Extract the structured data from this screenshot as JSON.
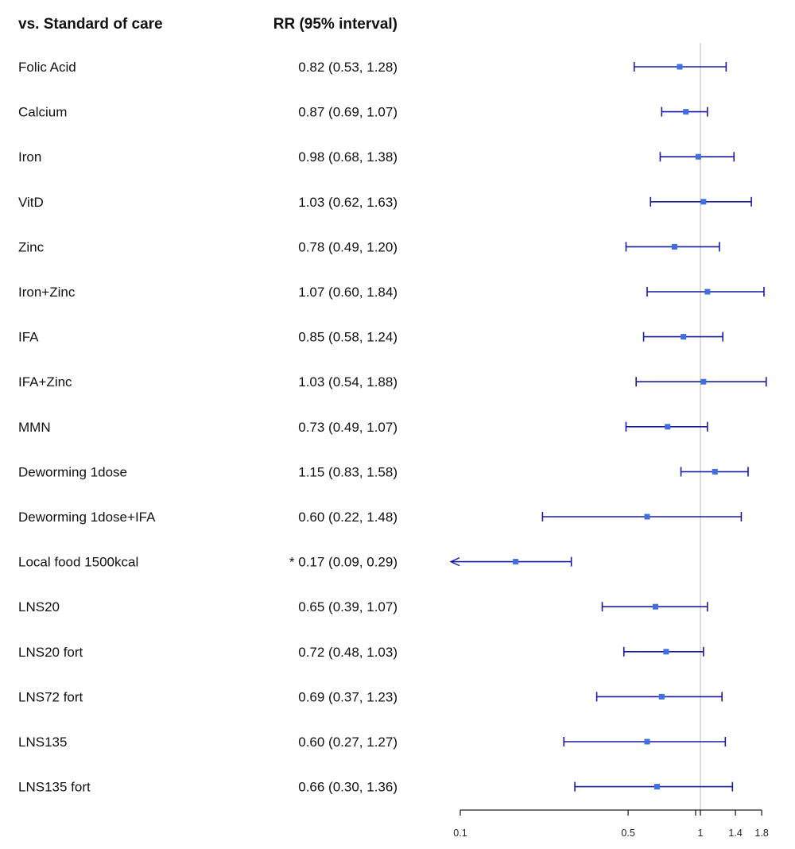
{
  "chart_data": {
    "type": "forest",
    "scale": "log",
    "headers": {
      "comparison": "vs. Standard of care",
      "estimate": "RR (95% interval)"
    },
    "reference_value": 1,
    "xlim": [
      0.1,
      1.8
    ],
    "x_ticks": [
      {
        "value": 0.1,
        "label": "0.1"
      },
      {
        "value": 0.5,
        "label": "0.5"
      },
      {
        "value": 0.98,
        "label": ""
      },
      {
        "value": 1,
        "label": "1"
      },
      {
        "value": 1.4,
        "label": "1.4"
      },
      {
        "value": 1.8,
        "label": "1.8"
      }
    ],
    "colors": {
      "interval": "#1a1aa0",
      "point": "#3f6fe0",
      "reference_line": "#d0d0d0",
      "axis": "#222222"
    },
    "rows": [
      {
        "label": "Folic Acid",
        "text": "0.82 (0.53, 1.28)",
        "rr": 0.82,
        "lo": 0.53,
        "hi": 1.28,
        "significant": false
      },
      {
        "label": "Calcium",
        "text": "0.87 (0.69, 1.07)",
        "rr": 0.87,
        "lo": 0.69,
        "hi": 1.07,
        "significant": false
      },
      {
        "label": "Iron",
        "text": "0.98 (0.68, 1.38)",
        "rr": 0.98,
        "lo": 0.68,
        "hi": 1.38,
        "significant": false
      },
      {
        "label": "VitD",
        "text": "1.03 (0.62, 1.63)",
        "rr": 1.03,
        "lo": 0.62,
        "hi": 1.63,
        "significant": false
      },
      {
        "label": "Zinc",
        "text": "0.78 (0.49, 1.20)",
        "rr": 0.78,
        "lo": 0.49,
        "hi": 1.2,
        "significant": false
      },
      {
        "label": "Iron+Zinc",
        "text": "1.07 (0.60, 1.84)",
        "rr": 1.07,
        "lo": 0.6,
        "hi": 1.84,
        "significant": false
      },
      {
        "label": "IFA",
        "text": "0.85 (0.58, 1.24)",
        "rr": 0.85,
        "lo": 0.58,
        "hi": 1.24,
        "significant": false
      },
      {
        "label": "IFA+Zinc",
        "text": "1.03 (0.54, 1.88)",
        "rr": 1.03,
        "lo": 0.54,
        "hi": 1.88,
        "significant": false
      },
      {
        "label": "MMN",
        "text": "0.73 (0.49, 1.07)",
        "rr": 0.73,
        "lo": 0.49,
        "hi": 1.07,
        "significant": false
      },
      {
        "label": "Deworming 1dose",
        "text": "1.15 (0.83, 1.58)",
        "rr": 1.15,
        "lo": 0.83,
        "hi": 1.58,
        "significant": false
      },
      {
        "label": "Deworming 1dose+IFA",
        "text": "0.60 (0.22, 1.48)",
        "rr": 0.6,
        "lo": 0.22,
        "hi": 1.48,
        "significant": false
      },
      {
        "label": "Local food 1500kcal",
        "text": "* 0.17 (0.09, 0.29)",
        "rr": 0.17,
        "lo": 0.09,
        "hi": 0.29,
        "significant": true
      },
      {
        "label": "LNS20",
        "text": "0.65 (0.39, 1.07)",
        "rr": 0.65,
        "lo": 0.39,
        "hi": 1.07,
        "significant": false
      },
      {
        "label": "LNS20 fort",
        "text": "0.72 (0.48, 1.03)",
        "rr": 0.72,
        "lo": 0.48,
        "hi": 1.03,
        "significant": false
      },
      {
        "label": "LNS72 fort",
        "text": "0.69 (0.37, 1.23)",
        "rr": 0.69,
        "lo": 0.37,
        "hi": 1.23,
        "significant": false
      },
      {
        "label": "LNS135",
        "text": "0.60 (0.27, 1.27)",
        "rr": 0.6,
        "lo": 0.27,
        "hi": 1.27,
        "significant": false
      },
      {
        "label": "LNS135 fort",
        "text": "0.66 (0.30, 1.36)",
        "rr": 0.66,
        "lo": 0.3,
        "hi": 1.36,
        "significant": false
      }
    ]
  }
}
